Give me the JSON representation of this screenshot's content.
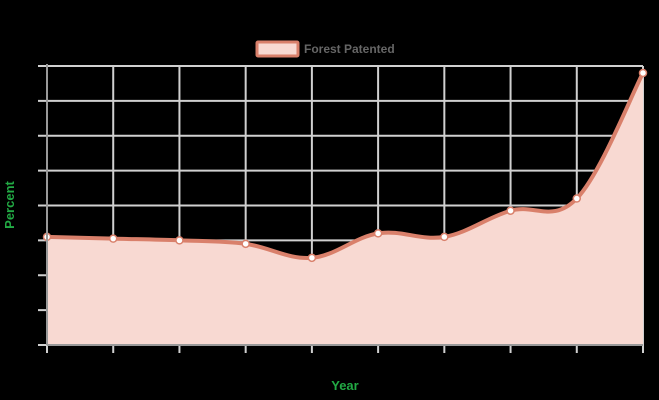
{
  "chart_data": {
    "type": "area",
    "legend": {
      "label": "Forest Patented",
      "position": "top-center"
    },
    "xlabel": "Year",
    "ylabel": "Percent",
    "categories": [
      "",
      "",
      "",
      "",
      "",
      "",
      "",
      "",
      "",
      ""
    ],
    "series": [
      {
        "name": "Forest Patented",
        "values": [
          3.1,
          3.05,
          3.0,
          2.9,
          2.5,
          3.2,
          3.1,
          3.85,
          4.2,
          7.8
        ]
      }
    ],
    "ylim": [
      0,
      8
    ],
    "grid": true,
    "colors": {
      "line": "#d9806b",
      "fill": "#f8d9d2",
      "grid": "#d0d0d0",
      "axis": "#999999",
      "title": "#22aa44",
      "legend_text": "#666666"
    }
  }
}
